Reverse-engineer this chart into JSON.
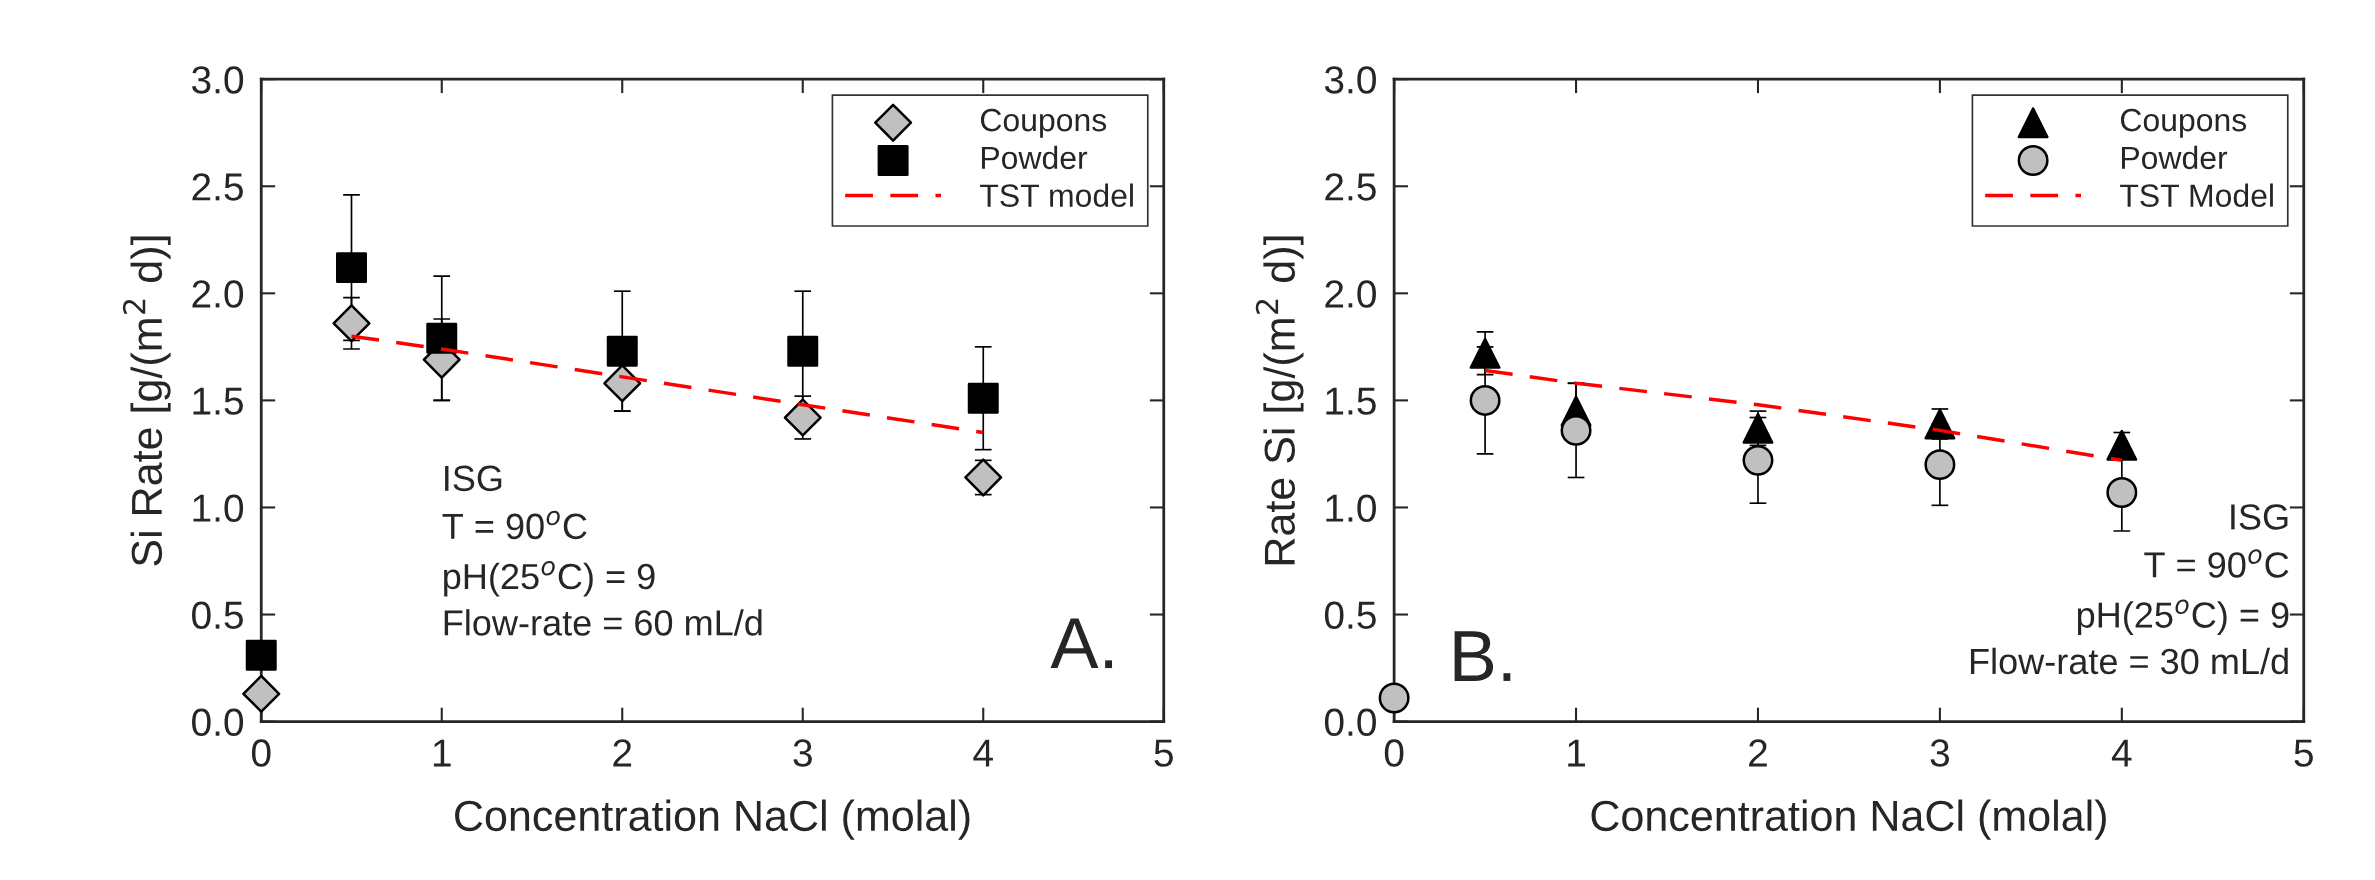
{
  "chart_data": [
    {
      "type": "scatter",
      "xlabel": "Concentration NaCl (molal)",
      "ylabel": "Si Rate [g/(m$^{2}$ d)]",
      "xlim": [
        0,
        5
      ],
      "ylim": [
        0,
        3
      ],
      "xticks": [
        0,
        1,
        2,
        3,
        4,
        5
      ],
      "yticks": [
        {
          "value": 0,
          "label": "0.0"
        },
        {
          "value": 0.5,
          "label": "0.5"
        },
        {
          "value": 1,
          "label": "1.0"
        },
        {
          "value": 1.5,
          "label": "1.5"
        },
        {
          "value": 2,
          "label": "2.0"
        },
        {
          "value": 2.5,
          "label": "2.5"
        },
        {
          "value": 3,
          "label": "3.0"
        }
      ],
      "x": [
        0,
        0.5,
        1,
        2,
        3,
        4
      ],
      "legend": "top right",
      "grid": false,
      "series": [
        {
          "name": "Coupons",
          "color": "#c0c0c0",
          "marker": "diamond",
          "values": [
            0.13,
            1.86,
            1.69,
            1.58,
            1.42,
            1.14
          ],
          "errors": [
            null,
            0.12,
            0.19,
            0.13,
            0.1,
            0.08
          ]
        },
        {
          "name": "Powder",
          "color": "#000000",
          "marker": "square",
          "values": [
            0.31,
            2.12,
            1.79,
            1.73,
            1.73,
            1.51
          ],
          "errors": [
            null,
            0.34,
            0.29,
            0.28,
            0.28,
            0.24
          ]
        },
        {
          "name": "TST model",
          "type": "line",
          "color": "#ff0000",
          "line_style": "dashed",
          "marker": "none",
          "x": [
            0.5,
            1,
            2,
            3,
            4
          ],
          "values": [
            1.8,
            1.74,
            1.61,
            1.48,
            1.35
          ]
        }
      ],
      "annotations": [
        "ISG",
        "T = 90$^{o}$C",
        "pH(25$^{o}$C) = 9",
        "Flow-rate = 60 mL/d",
        "A."
      ]
    },
    {
      "type": "scatter",
      "xlabel": "Concentration NaCl (molal)",
      "ylabel": "Rate Si [g/(m$^{2}$ d)]",
      "xlim": [
        0,
        5
      ],
      "ylim": [
        0,
        3
      ],
      "xticks": [
        0,
        1,
        2,
        3,
        4,
        5
      ],
      "yticks": [
        {
          "value": 0,
          "label": "0.0"
        },
        {
          "value": 0.5,
          "label": "0.5"
        },
        {
          "value": 1,
          "label": "1.0"
        },
        {
          "value": 1.5,
          "label": "1.5"
        },
        {
          "value": 2,
          "label": "2.0"
        },
        {
          "value": 2.5,
          "label": "2.5"
        },
        {
          "value": 3,
          "label": "3.0"
        }
      ],
      "x": [
        0,
        0.5,
        1,
        2,
        3,
        4
      ],
      "legend": "top right",
      "grid": false,
      "series": [
        {
          "name": "Coupons",
          "color": "#000000",
          "marker": "triangle",
          "values": [
            null,
            1.72,
            1.45,
            1.37,
            1.39,
            1.29
          ],
          "errors": [
            null,
            0.1,
            0.13,
            0.08,
            0.07,
            0.06
          ]
        },
        {
          "name": "Powder",
          "color": "#c0c0c0",
          "marker": "circle",
          "values": [
            0.11,
            1.5,
            1.36,
            1.22,
            1.2,
            1.07
          ],
          "errors": [
            null,
            0.25,
            0.22,
            0.2,
            0.19,
            0.18
          ]
        },
        {
          "name": "TST Model",
          "type": "line",
          "color": "#ff0000",
          "line_style": "dashed",
          "marker": "none",
          "x": [
            0.5,
            1,
            2,
            3,
            4
          ],
          "values": [
            1.64,
            1.58,
            1.48,
            1.36,
            1.22
          ]
        }
      ],
      "annotations": [
        "ISG",
        "T = 90$^{o}$C",
        "pH(25$^{o}$C) = 9",
        "Flow-rate = 30 mL/d",
        "B."
      ]
    }
  ]
}
